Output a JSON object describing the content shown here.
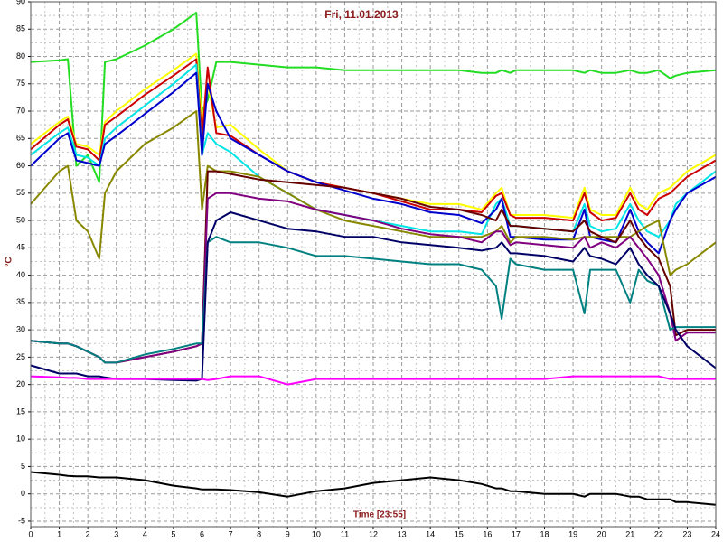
{
  "chart_data": {
    "type": "line",
    "title": "Fri, 11.01.2013",
    "y_label": "°C",
    "x_label": "Time [23:55]",
    "x": [
      0,
      1,
      1.3,
      1.6,
      2,
      2.4,
      2.6,
      3,
      4,
      5,
      5.8,
      6,
      6.2,
      6.5,
      7,
      8,
      9,
      10,
      11,
      12,
      13,
      14,
      15,
      15.8,
      16.3,
      16.5,
      16.8,
      17,
      18,
      19,
      19.4,
      19.6,
      20,
      20.5,
      21,
      21.3,
      21.6,
      22,
      22.4,
      22.6,
      23,
      24
    ],
    "xlim": [
      0,
      24
    ],
    "xticks": [
      0,
      1,
      2,
      3,
      4,
      5,
      6,
      7,
      8,
      9,
      10,
      11,
      12,
      13,
      14,
      15,
      16,
      17,
      18,
      19,
      20,
      21,
      22,
      23,
      24
    ],
    "ylim": [
      -6,
      90
    ],
    "yticks": [
      -5,
      0,
      5,
      10,
      15,
      20,
      25,
      30,
      35,
      40,
      45,
      50,
      55,
      60,
      65,
      70,
      75,
      80,
      85,
      90
    ],
    "grid": true,
    "minor_grid": true,
    "series": [
      {
        "color": "#22dd22",
        "values": [
          79,
          79.3,
          79.5,
          60,
          62,
          57,
          79,
          79.5,
          82,
          85,
          88,
          70,
          72,
          79,
          79,
          78.5,
          78,
          78,
          77.5,
          77.5,
          77.5,
          77.5,
          77.5,
          77,
          77,
          77.5,
          77,
          77.5,
          77.5,
          77.5,
          77,
          77.5,
          77,
          77,
          77.5,
          77,
          77,
          77.5,
          76,
          76.5,
          77,
          77.5
        ]
      },
      {
        "color": "#ffff00",
        "values": [
          64,
          68,
          69,
          64,
          63.5,
          62,
          68,
          70,
          74,
          77.5,
          80.5,
          68,
          75,
          67,
          67.5,
          63,
          59,
          57,
          56,
          55,
          54,
          53,
          53,
          52,
          55,
          56,
          51,
          51,
          51,
          50.5,
          56,
          52,
          51,
          51,
          56,
          53,
          52,
          55,
          56,
          57,
          59,
          62
        ]
      },
      {
        "color": "#cc0000",
        "values": [
          63,
          67.5,
          68.5,
          63.5,
          63,
          61,
          67.5,
          69,
          73,
          76.5,
          79.5,
          65,
          78,
          66,
          65.5,
          62,
          59,
          57,
          56,
          55,
          53.5,
          52,
          52,
          51.5,
          54.5,
          55,
          51,
          50.5,
          50.5,
          50,
          55,
          51.5,
          50,
          50.5,
          55,
          52,
          51,
          54,
          55,
          56,
          58,
          61
        ]
      },
      {
        "color": "#00e5e5",
        "values": [
          62,
          66,
          67,
          62,
          61.5,
          60,
          65,
          67,
          71,
          75,
          78.5,
          62,
          66,
          64,
          62.5,
          58,
          55,
          52,
          51,
          50,
          49,
          48,
          48,
          47.5,
          53,
          54,
          49,
          49,
          48.5,
          48,
          53,
          49,
          48,
          48.5,
          53,
          50,
          48,
          47,
          50,
          53,
          55,
          59
        ]
      },
      {
        "color": "#0000cc",
        "values": [
          60,
          65,
          66,
          61,
          60.5,
          60,
          64,
          65.5,
          69.5,
          73.5,
          77,
          62,
          75,
          70,
          65,
          62,
          59,
          57,
          55.5,
          54,
          53,
          51.5,
          51,
          49.5,
          52,
          54,
          47,
          47,
          46.5,
          46.5,
          52,
          47,
          46.5,
          46,
          52,
          48,
          46,
          44,
          50,
          52,
          55,
          58
        ]
      },
      {
        "color": "#888800",
        "values": [
          53,
          59,
          60,
          50,
          48,
          43,
          55,
          59,
          64,
          67,
          70,
          52,
          60,
          59,
          59,
          58,
          55,
          52,
          50,
          49,
          48,
          47,
          47,
          47,
          48,
          49,
          46,
          47,
          47,
          46.5,
          47,
          47,
          47,
          47,
          47,
          48,
          49,
          50,
          40,
          41,
          42,
          46
        ]
      },
      {
        "color": "#660000",
        "values": [
          28,
          27.5,
          27.5,
          27,
          26,
          25,
          24,
          24,
          25,
          26,
          27,
          27.5,
          59,
          59,
          58.5,
          57.5,
          57,
          56.5,
          56,
          55,
          54,
          52.5,
          52,
          51,
          50,
          52,
          49,
          49,
          48.5,
          48,
          50,
          48,
          47,
          46,
          50,
          47,
          45,
          43,
          38,
          29,
          30,
          30
        ]
      },
      {
        "color": "#800080",
        "values": [
          28,
          27.5,
          27.5,
          27,
          26,
          25,
          24,
          24,
          25,
          26,
          27,
          27.5,
          54,
          55,
          55,
          54,
          53.5,
          52,
          51,
          50,
          48.5,
          47.5,
          47,
          46,
          48,
          48,
          45.5,
          46,
          45.5,
          45,
          47,
          45,
          46,
          45,
          47,
          45,
          43,
          40,
          33,
          28,
          29.5,
          29.5
        ]
      },
      {
        "color": "#008080",
        "values": [
          28,
          27.5,
          27.5,
          27,
          26,
          25,
          24,
          24,
          25.5,
          26.5,
          27.5,
          27.5,
          46,
          47,
          46,
          46,
          45,
          43.5,
          43.5,
          43,
          42.5,
          42,
          42,
          41,
          38,
          32,
          43,
          42,
          41,
          41,
          33,
          41,
          41,
          41,
          35,
          41,
          39,
          38,
          30,
          30.5,
          30.5,
          30.5
        ]
      },
      {
        "color": "#000066",
        "values": [
          23.5,
          22,
          22,
          22,
          21.5,
          21.5,
          21.3,
          21,
          21,
          20.8,
          20.7,
          21,
          46,
          50,
          51.5,
          50,
          48.5,
          48,
          47,
          47,
          46,
          45.5,
          45,
          44.5,
          45,
          46,
          44,
          44,
          43.5,
          42.5,
          45,
          43.5,
          43,
          42,
          45,
          42,
          40,
          38,
          33,
          30,
          27,
          23
        ]
      },
      {
        "color": "#ff00ff",
        "values": [
          21.5,
          21.3,
          21.2,
          21.2,
          21,
          21,
          21,
          21,
          21,
          21,
          21,
          21,
          20.8,
          21,
          21.5,
          21.5,
          20,
          21,
          21,
          21,
          21,
          21,
          21,
          21,
          21,
          21,
          21,
          21,
          21,
          21.5,
          21.5,
          21.5,
          21.5,
          21.5,
          21.5,
          21.5,
          21.5,
          21.5,
          21,
          21,
          21,
          21
        ]
      },
      {
        "color": "#000000",
        "values": [
          4,
          3.5,
          3.3,
          3.2,
          3.2,
          3,
          3,
          3,
          2.5,
          1.5,
          1,
          0.8,
          0.8,
          0.8,
          0.7,
          0.3,
          -0.5,
          0.5,
          1,
          2,
          2.5,
          3,
          2.5,
          1.8,
          1,
          1,
          0.5,
          0.5,
          0,
          0,
          -0.5,
          0,
          0,
          0,
          -0.5,
          -0.5,
          -1,
          -1,
          -1,
          -1.5,
          -1.5,
          -2
        ]
      }
    ]
  }
}
